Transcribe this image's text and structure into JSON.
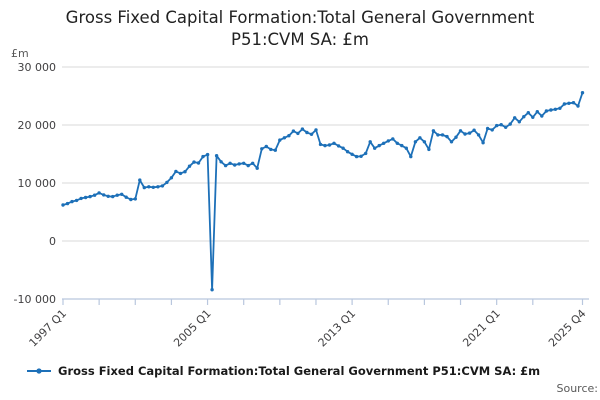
{
  "header": {
    "title_line1": "Gross Fixed Capital Formation:Total General Government",
    "title_line2": "P51:CVM SA: £m"
  },
  "legend": {
    "series_label": "Gross Fixed Capital Formation:Total General Government P51:CVM SA: £m"
  },
  "footer": {
    "source_label": "Source:"
  },
  "colors": {
    "line": "#1d70b8",
    "grid": "#d9d9d9",
    "axis": "#b9c7de",
    "tick_text": "#414042",
    "muted_text": "#595959"
  },
  "chart_data": {
    "type": "line",
    "title": "Gross Fixed Capital Formation:Total General Government P51:CVM SA: £m",
    "unit_label": "£m",
    "xlabel": "",
    "ylabel": "£m",
    "frequency": "quarterly",
    "x_start": "1997 Q1",
    "x_end": "2025 Q4",
    "ylim": [
      -10000,
      30000
    ],
    "grid": "horizontal",
    "legend_position": "bottom",
    "y_ticks": [
      {
        "value": 30000,
        "label": "30 000"
      },
      {
        "value": 20000,
        "label": "20 000"
      },
      {
        "value": 10000,
        "label": "10 000"
      },
      {
        "value": 0,
        "label": "0"
      },
      {
        "value": -10000,
        "label": "-10 000"
      }
    ],
    "x_tick_indices": [
      0,
      8,
      16,
      24,
      32,
      40,
      48,
      56,
      64,
      72,
      80,
      88,
      96,
      104,
      115
    ],
    "x_tick_labels": [
      {
        "index": 0,
        "label": "1997 Q1"
      },
      {
        "index": 32,
        "label": "2005 Q1"
      },
      {
        "index": 64,
        "label": "2013 Q1"
      },
      {
        "index": 96,
        "label": "2021 Q1"
      },
      {
        "index": 115,
        "label": "2025 Q4"
      }
    ],
    "values": [
      6200,
      6450,
      6800,
      7000,
      7350,
      7500,
      7650,
      7900,
      8300,
      7950,
      7700,
      7650,
      7900,
      8050,
      7550,
      7150,
      7250,
      10500,
      9200,
      9350,
      9250,
      9350,
      9500,
      10100,
      10900,
      12000,
      11650,
      11950,
      12900,
      13600,
      13450,
      14550,
      14900,
      -8400,
      14700,
      13650,
      13000,
      13400,
      13100,
      13300,
      13400,
      13000,
      13400,
      12550,
      15900,
      16300,
      15800,
      15650,
      17400,
      17800,
      18150,
      18950,
      18550,
      19300,
      18700,
      18400,
      19150,
      16650,
      16450,
      16550,
      16850,
      16400,
      16000,
      15400,
      14950,
      14550,
      14600,
      15100,
      17100,
      16000,
      16450,
      16850,
      17250,
      17600,
      16850,
      16450,
      16000,
      14550,
      17100,
      17800,
      17100,
      15800,
      19000,
      18300,
      18300,
      18000,
      17100,
      17900,
      19000,
      18450,
      18600,
      19100,
      18300,
      16950,
      19400,
      19150,
      19900,
      20050,
      19600,
      20150,
      21250,
      20550,
      21430,
      22120,
      21330,
      22290,
      21550,
      22410,
      22590,
      22700,
      22880,
      23620,
      23740,
      23850,
      23280,
      25570
    ]
  }
}
